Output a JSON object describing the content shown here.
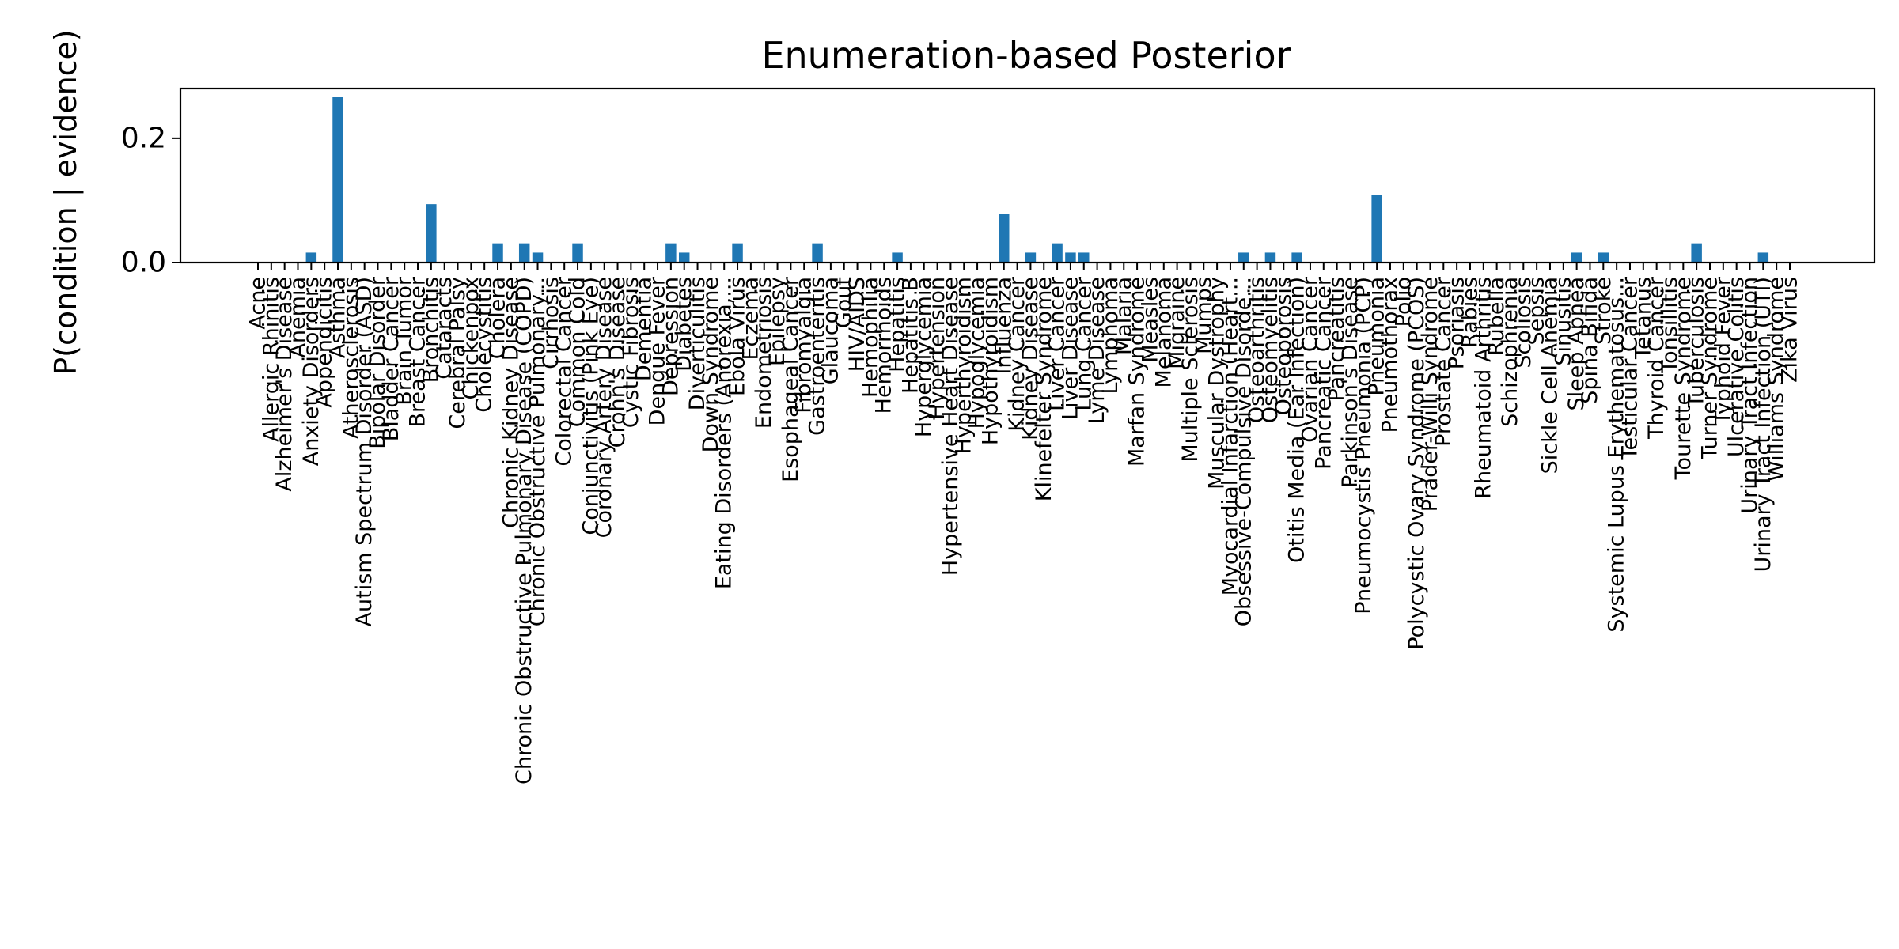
{
  "chart_data": {
    "type": "bar",
    "title": "Enumeration-based Posterior",
    "xlabel": "",
    "ylabel": "P(condition | evidence)",
    "ylim": [
      0,
      0.28
    ],
    "yticks": [
      0.0,
      0.2
    ],
    "ytick_labels": [
      "0.0",
      "0.2"
    ],
    "grid": false,
    "bar_color": "#1f77b4",
    "categories": [
      "Acne",
      "Allergic Rhinitis",
      "Alzheimer's Disease",
      "Anemia",
      "Anxiety Disorders",
      "Appendicitis",
      "Asthma",
      "Atherosclerosis",
      "Autism Spectrum Disorder (ASD)",
      "Bipolar Disorder",
      "Bladder Cancer",
      "Brain Tumor",
      "Breast Cancer",
      "Bronchitis",
      "Cataracts",
      "Cerebral Palsy",
      "Chickenpox",
      "Cholecystitis",
      "Cholera",
      "Chronic Kidney Disease",
      "Chronic Obstructive Pulmonary Disease (COPD)",
      "Chronic Obstructive Pulmonary...",
      "Cirrhosis",
      "Colorectal Cancer",
      "Common Cold",
      "Conjunctivitis (Pink Eye)",
      "Coronary Artery Disease",
      "Crohn's Disease",
      "Cystic Fibrosis",
      "Dementia",
      "Dengue Fever",
      "Depression",
      "Diabetes",
      "Diverticulitis",
      "Down Syndrome",
      "Eating Disorders (Anorexia,...",
      "Ebola Virus",
      "Eczema",
      "Endometriosis",
      "Epilepsy",
      "Esophageal Cancer",
      "Fibromyalgia",
      "Gastroenteritis",
      "Glaucoma",
      "Gout",
      "HIV/AIDS",
      "Hemophilia",
      "Hemorrhoids",
      "Hepatitis",
      "Hepatitis B",
      "Hyperglycemia",
      "Hypertension",
      "Hypertensive Heart Disease",
      "Hyperthyroidism",
      "Hypoglycemia",
      "Hypothyroidism",
      "Influenza",
      "Kidney Cancer",
      "Kidney Disease",
      "Klinefelter Syndrome",
      "Liver Cancer",
      "Liver Disease",
      "Lung Cancer",
      "Lyme Disease",
      "Lymphoma",
      "Malaria",
      "Marfan Syndrome",
      "Measles",
      "Melanoma",
      "Migraine",
      "Multiple Sclerosis",
      "Mumps",
      "Muscular Dystrophy",
      "Myocardial Infarction (Heart...",
      "Obsessive-Compulsive Disorde...",
      "Osteoarthritis",
      "Osteomyelitis",
      "Osteoporosis",
      "Otitis Media (Ear Infection)",
      "Ovarian Cancer",
      "Pancreatic Cancer",
      "Pancreatitis",
      "Parkinson's Disease",
      "Pneumocystis Pneumonia (PCP)",
      "Pneumonia",
      "Pneumothorax",
      "Polio",
      "Polycystic Ovary Syndrome (PCOS)",
      "Prader-Willi Syndrome",
      "Prostate Cancer",
      "Psoriasis",
      "Rabies",
      "Rheumatoid Arthritis",
      "Rubella",
      "Schizophrenia",
      "Scoliosis",
      "Sepsis",
      "Sickle Cell Anemia",
      "Sinusitis",
      "Sleep Apnea",
      "Spina Bifida",
      "Stroke",
      "Systemic Lupus Erythematosus...",
      "Testicular Cancer",
      "Tetanus",
      "Thyroid Cancer",
      "Tonsillitis",
      "Tourette Syndrome",
      "Tuberculosis",
      "Turner Syndrome",
      "Typhoid Fever",
      "Ulcerative Colitis",
      "Urinary Tract Infection",
      "Urinary Tract Infection (UTI)",
      "Williams Syndrome",
      "Zika Virus"
    ],
    "values": [
      0,
      0,
      0,
      0,
      0.016,
      0,
      0.266,
      0,
      0,
      0,
      0,
      0,
      0,
      0.094,
      0,
      0,
      0,
      0,
      0.031,
      0,
      0.031,
      0.016,
      0,
      0,
      0.031,
      0,
      0,
      0,
      0,
      0,
      0,
      0.031,
      0.016,
      0,
      0,
      0,
      0.031,
      0,
      0,
      0,
      0,
      0,
      0.031,
      0,
      0,
      0,
      0,
      0,
      0.016,
      0,
      0,
      0,
      0,
      0,
      0,
      0,
      0.078,
      0,
      0.016,
      0,
      0.031,
      0.016,
      0.016,
      0,
      0,
      0,
      0,
      0,
      0,
      0,
      0,
      0,
      0,
      0,
      0.016,
      0,
      0.016,
      0,
      0.016,
      0,
      0,
      0,
      0,
      0,
      0.109,
      0,
      0,
      0,
      0,
      0,
      0,
      0,
      0,
      0,
      0,
      0,
      0,
      0,
      0,
      0.016,
      0,
      0.016,
      0,
      0,
      0,
      0,
      0,
      0,
      0.031,
      0,
      0,
      0,
      0,
      0.016,
      0,
      0
    ]
  }
}
